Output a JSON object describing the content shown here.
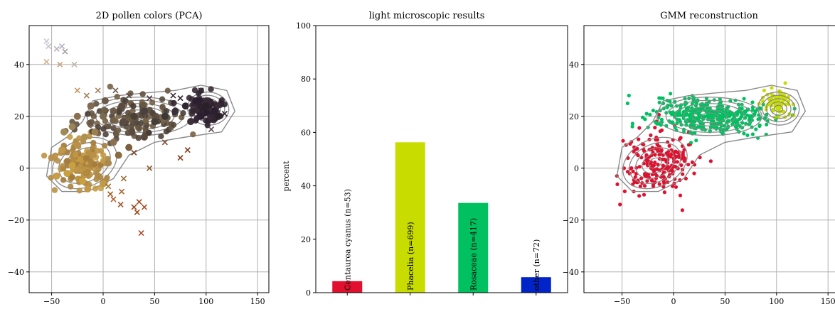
{
  "colors": {
    "contour": "#8a8a8a",
    "centaurea": "#e0102e",
    "phacelia": "#c8dc00",
    "rosaceae": "#00c060",
    "other": "#0024c8"
  },
  "chart_data": [
    {
      "type": "scatter",
      "title": "2D pollen colors (PCA)",
      "xlim": [
        -60,
        160
      ],
      "ylim": [
        -48,
        55
      ],
      "xticks": [
        -50,
        0,
        50,
        100,
        150
      ],
      "yticks": [
        -40,
        -20,
        0,
        20,
        40
      ],
      "grid": true,
      "series": [
        {
          "marker": "x",
          "points": [
            [
              -55,
              49,
              "#c9c9d9"
            ],
            [
              -53,
              47,
              "#c7c3c9"
            ],
            [
              -45,
              46,
              "#b8b0b8"
            ],
            [
              -40,
              47,
              "#b0b0c0"
            ],
            [
              -37,
              45,
              "#a89f9f"
            ],
            [
              -55,
              41,
              "#d4b08a"
            ],
            [
              -42,
              40,
              "#c8a07a"
            ],
            [
              -28,
              40,
              "#bfb4a8"
            ],
            [
              -25,
              30,
              "#c89560"
            ],
            [
              -16,
              28,
              "#a07a50"
            ],
            [
              -12,
              24,
              "#8a6a4a"
            ],
            [
              -5,
              30,
              "#a08060"
            ],
            [
              12,
              30,
              "#6a5a4a"
            ],
            [
              25,
              28,
              "#5a4a40"
            ],
            [
              45,
              27,
              "#4a3a38"
            ],
            [
              68,
              28,
              "#3a2a30"
            ],
            [
              75,
              27,
              "#2a2028"
            ],
            [
              95,
              30,
              "#302a30"
            ],
            [
              118,
              21,
              "#2a2028"
            ],
            [
              105,
              15,
              "#5a4a4a"
            ],
            [
              60,
              10,
              "#7a4a30"
            ],
            [
              82,
              7,
              "#7a3a20"
            ],
            [
              75,
              4,
              "#8a3a20"
            ],
            [
              30,
              6,
              "#7a4a30"
            ],
            [
              45,
              0,
              "#8a5a30"
            ],
            [
              20,
              -4,
              "#9a6a30"
            ],
            [
              5,
              -7,
              "#a06a30"
            ],
            [
              7,
              -10,
              "#a05a20"
            ],
            [
              18,
              -9,
              "#a8602a"
            ],
            [
              10,
              -12,
              "#b06030"
            ],
            [
              17,
              -14,
              "#a05028"
            ],
            [
              30,
              -15,
              "#a04a20"
            ],
            [
              35,
              -13,
              "#a05028"
            ],
            [
              40,
              -15,
              "#a8502a"
            ],
            [
              33,
              -17,
              "#9a4a20"
            ],
            [
              37,
              -25,
              "#b04a2a"
            ]
          ]
        },
        {
          "marker": "o",
          "points": [
            [
              -50,
              4,
              "#b89050"
            ],
            [
              -40,
              7,
              "#c0984a"
            ],
            [
              -30,
              1,
              "#c8a040"
            ],
            [
              -20,
              -5,
              "#c8a040"
            ],
            [
              -15,
              -8,
              "#c09848"
            ],
            [
              -35,
              -2,
              "#c8a040"
            ],
            [
              -25,
              9,
              "#b89048"
            ],
            [
              -45,
              -3,
              "#c89c44"
            ],
            [
              -10,
              5,
              "#b89048"
            ],
            [
              -5,
              -3,
              "#b08a48"
            ],
            [
              0,
              -6,
              "#c09a48"
            ],
            [
              5,
              2,
              "#a88a50"
            ],
            [
              10,
              10,
              "#8a7050"
            ],
            [
              -8,
              14,
              "#9a8050"
            ],
            [
              -18,
              12,
              "#b09050"
            ],
            [
              0,
              20,
              "#7a6a50"
            ],
            [
              10,
              22,
              "#6a5a48"
            ],
            [
              20,
              18,
              "#5a4a40"
            ],
            [
              30,
              20,
              "#4a4038"
            ],
            [
              40,
              22,
              "#4a4040"
            ],
            [
              50,
              18,
              "#444038"
            ],
            [
              60,
              20,
              "#3a3838"
            ],
            [
              70,
              22,
              "#3a3038"
            ],
            [
              80,
              24,
              "#302830"
            ],
            [
              90,
              26,
              "#2a2030"
            ],
            [
              95,
              20,
              "#2a2030"
            ],
            [
              100,
              24,
              "#2a2028"
            ],
            [
              108,
              22,
              "#2a2030"
            ],
            [
              112,
              20,
              "#2a2028"
            ],
            [
              85,
              18,
              "#3a3038"
            ],
            [
              -25,
              20,
              "#8a7050"
            ],
            [
              -12,
              24,
              "#7a6a50"
            ],
            [
              2,
              26,
              "#6a5a4a"
            ],
            [
              18,
              24,
              "#5a4a40"
            ],
            [
              28,
              14,
              "#5a4a40"
            ],
            [
              40,
              12,
              "#5a4a3a"
            ],
            [
              15,
              5,
              "#8a6a40"
            ],
            [
              25,
              8,
              "#7a6040"
            ],
            [
              -38,
              14,
              "#a08a58"
            ],
            [
              -30,
              16,
              "#9a8458"
            ]
          ]
        }
      ]
    },
    {
      "type": "bar",
      "title": "light microscopic results",
      "ylabel": "percent",
      "ylim": [
        0,
        100
      ],
      "yticks": [
        0,
        20,
        40,
        60,
        80,
        100
      ],
      "grid": false,
      "categories": [
        "Centaurea cyanus",
        "Phacelia",
        "Rosaceae",
        "other"
      ],
      "bar_labels": [
        "Centaurea cyanus (n=53)",
        "Phacelia (n=699)",
        "Rosaceae (n=417)",
        "other (n=72)"
      ],
      "values": [
        4.3,
        56.3,
        33.6,
        5.8
      ]
    },
    {
      "type": "scatter",
      "title": "GMM reconstruction",
      "xlim": [
        -60,
        160
      ],
      "ylim": [
        -48,
        55
      ],
      "xticks": [
        -50,
        0,
        50,
        100,
        150
      ],
      "yticks": [
        -40,
        -20,
        0,
        20,
        40
      ],
      "grid": true,
      "series": [
        {
          "color": "#e0102e",
          "center": [
            -15,
            3
          ],
          "spread": [
            16,
            6
          ],
          "count": 220,
          "extra": [
            [
              -52,
              -14
            ],
            [
              -55,
              -3
            ],
            [
              -48,
              0
            ],
            [
              12,
              -4
            ],
            [
              20,
              -2
            ]
          ]
        },
        {
          "color": "#00c060",
          "center": [
            35,
            20
          ],
          "spread": [
            28,
            3.5
          ],
          "count": 380,
          "extra": [
            [
              -12,
              27
            ],
            [
              -10,
              25
            ],
            [
              90,
              13
            ],
            [
              80,
              15
            ]
          ]
        },
        {
          "color": "#c8dc00",
          "center": [
            102,
            25
          ],
          "spread": [
            7,
            2.5
          ],
          "count": 70,
          "extra": [
            [
              88,
              30
            ]
          ]
        }
      ]
    }
  ]
}
